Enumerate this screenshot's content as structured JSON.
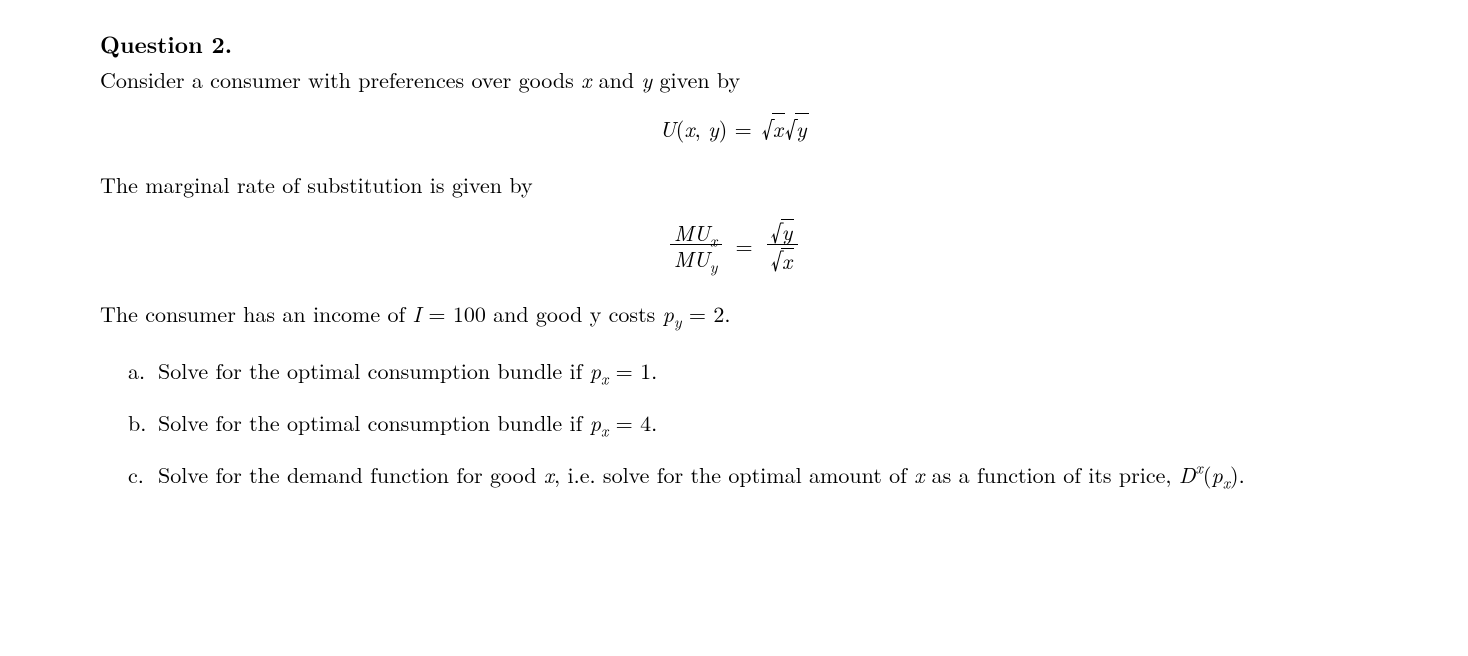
{
  "heading": "Question 2.",
  "intro_before_x": "Consider a consumer with preferences over goods ",
  "intro_between": " and ",
  "intro_after_y": " given by",
  "eq1": {
    "lhs_U": "U",
    "lhs_open": "(",
    "lhs_x": "x",
    "lhs_comma": ", ",
    "lhs_y": "y",
    "lhs_close": ") = ",
    "rad_x": "x",
    "rad_y": "y"
  },
  "mrs_text": "The marginal rate of substitution is given by",
  "eq2": {
    "MU": "MU",
    "sub_x": "x",
    "sub_y": "y",
    "equals": "=",
    "rad_x": "x",
    "rad_y": "y"
  },
  "income_line": {
    "t1": "The consumer has an income of ",
    "I": "I",
    "t2": " = 100 and good y costs ",
    "p": "p",
    "sub_y": "y",
    "t3": " = 2."
  },
  "items": {
    "a": {
      "marker": "a.",
      "t1": "Solve for the optimal consumption bundle if ",
      "p": "p",
      "sub_x": "x",
      "t2": " = 1."
    },
    "b": {
      "marker": "b.",
      "t1": "Solve for the optimal consumption bundle if ",
      "p": "p",
      "sub_x": "x",
      "t2": " = 4."
    },
    "c": {
      "marker": "c.",
      "t1": "Solve for the demand function for good ",
      "x1": "x",
      "t2": ", i.e. solve for the optimal amount of ",
      "x2": "x",
      "t3": " as a function of its price, ",
      "D": "D",
      "sup_x": "x",
      "open": "(",
      "p": "p",
      "sub_x": "x",
      "close": ")."
    }
  }
}
